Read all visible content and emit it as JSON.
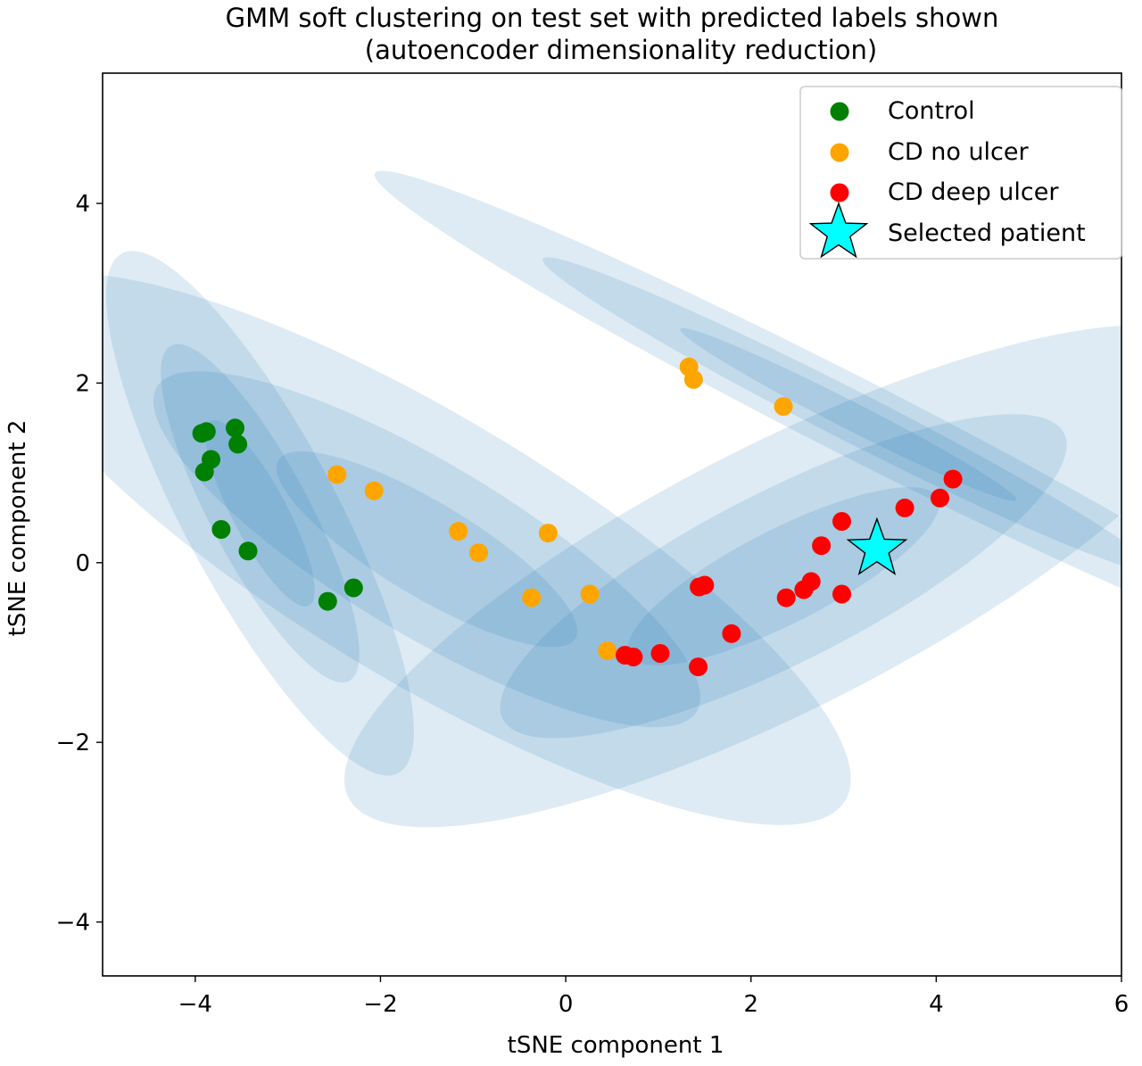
{
  "chart_data": {
    "type": "scatter",
    "title": "GMM soft clustering on test set with predicted labels shown",
    "subtitle": "(autoencoder dimensionality reduction)",
    "xlabel": "tSNE component 1",
    "ylabel": "tSNE component 2",
    "xlim": [
      -5.0,
      6.0
    ],
    "ylim": [
      -4.6,
      5.45
    ],
    "xticks": [
      -4,
      -2,
      0,
      2,
      4,
      6
    ],
    "yticks": [
      -4,
      -2,
      0,
      2,
      4
    ],
    "grid": false,
    "legend_position": "top-right",
    "series": [
      {
        "name": "Control",
        "color": "#008000",
        "marker": "circle",
        "points": [
          [
            -3.93,
            1.44
          ],
          [
            -3.88,
            1.46
          ],
          [
            -3.57,
            1.5
          ],
          [
            -3.54,
            1.32
          ],
          [
            -3.83,
            1.15
          ],
          [
            -3.9,
            1.01
          ],
          [
            -3.72,
            0.37
          ],
          [
            -3.43,
            0.13
          ],
          [
            -2.29,
            -0.28
          ],
          [
            -2.57,
            -0.43
          ]
        ]
      },
      {
        "name": "CD no ulcer",
        "color": "#FFA500",
        "marker": "circle",
        "points": [
          [
            1.33,
            2.18
          ],
          [
            1.38,
            2.04
          ],
          [
            2.35,
            1.74
          ],
          [
            -2.47,
            0.98
          ],
          [
            -2.07,
            0.8
          ],
          [
            -1.16,
            0.35
          ],
          [
            -0.94,
            0.11
          ],
          [
            -0.19,
            0.33
          ],
          [
            -0.37,
            -0.39
          ],
          [
            0.26,
            -0.35
          ],
          [
            0.45,
            -0.98
          ]
        ]
      },
      {
        "name": "CD deep ulcer",
        "color": "#FF0000",
        "marker": "circle",
        "points": [
          [
            4.18,
            0.93
          ],
          [
            4.04,
            0.72
          ],
          [
            3.66,
            0.61
          ],
          [
            2.98,
            0.46
          ],
          [
            2.76,
            0.19
          ],
          [
            1.5,
            -0.25
          ],
          [
            1.44,
            -0.27
          ],
          [
            2.65,
            -0.21
          ],
          [
            2.57,
            -0.3
          ],
          [
            2.38,
            -0.39
          ],
          [
            2.98,
            -0.35
          ],
          [
            1.79,
            -0.79
          ],
          [
            0.64,
            -1.03
          ],
          [
            0.73,
            -1.05
          ],
          [
            1.02,
            -1.01
          ],
          [
            1.43,
            -1.16
          ]
        ]
      },
      {
        "name": "Selected patient",
        "color": "#00FFFF",
        "marker": "star",
        "points": [
          [
            3.36,
            0.15
          ]
        ]
      }
    ],
    "gmm_components": [
      {
        "center": [
          -3.3,
          0.55
        ],
        "semi_axes": [
          2.05,
          0.55
        ],
        "angle_deg": -62
      },
      {
        "center": [
          -1.5,
          0.15
        ],
        "semi_axes": [
          3.4,
          0.95
        ],
        "angle_deg": -31
      },
      {
        "center": [
          2.35,
          -0.15
        ],
        "semi_axes": [
          3.4,
          0.95
        ],
        "angle_deg": 27
      },
      {
        "center": [
          3.05,
          1.65
        ],
        "semi_axes": [
          3.7,
          0.28
        ],
        "angle_deg": -27
      }
    ],
    "ellipse_color": "#1f77b4"
  }
}
